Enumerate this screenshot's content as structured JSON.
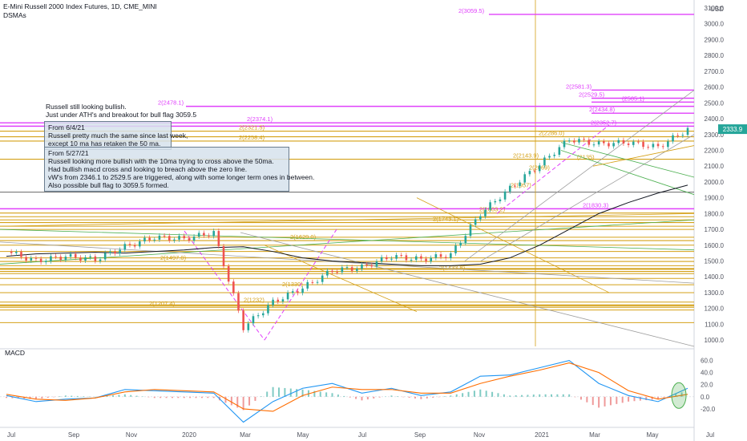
{
  "header": {
    "title": "E-Mini Russell 2000 Index Futures, 1D, CME_MINI",
    "indicator": "DSMAs"
  },
  "price_axis": {
    "currency": "USD",
    "ticks": [
      "3100.0",
      "3000.0",
      "2900.0",
      "2800.0",
      "2700.0",
      "2600.0",
      "2500.0",
      "2400.0",
      "2300.0",
      "2200.0",
      "2100.0",
      "2000.0",
      "1900.0",
      "1800.0",
      "1700.0",
      "1600.0",
      "1500.0",
      "1400.0",
      "1300.0",
      "1200.0",
      "1100.0",
      "1000.0"
    ],
    "last_price": "2333.9",
    "last_price_color": "#26a69a"
  },
  "macd_panel": {
    "label": "MACD",
    "ticks": [
      "60.0",
      "40.0",
      "20.0",
      "0.0",
      "-20.0"
    ]
  },
  "time_axis": [
    "Jul",
    "Sep",
    "Nov",
    "2020",
    "Mar",
    "May",
    "Jul",
    "Sep",
    "Nov",
    "2021",
    "Mar",
    "May",
    "Jul"
  ],
  "annotations": {
    "main_note": [
      "Russell still looking bullish.",
      "Just under ATH's and breakout for bull flag 3059.5"
    ],
    "box1_title": "From 6/4/21",
    "box1_lines": [
      "Russell pretty much the same since last week,",
      "except 10 ma has retaken the 50 ma."
    ],
    "box2_title": "From 5/27/21",
    "box2_lines": [
      "Russell looking more bullish with the 10ma trying to cross above the 50ma.",
      "Had bullish macd cross and looking to breach above the zero line.",
      "vW's from 2346.1 to 2529.5 are triggered, along with some longer term ones in between.",
      "Also possible bull flag to 3059.5 formed."
    ]
  },
  "level_labels": {
    "magenta": [
      "2(3059.5)",
      "2(2581.3)",
      "2(2529.5)",
      "(2505.1)",
      "2(2478.1)",
      "2(2434.8)",
      "2(2374.1)",
      "2(2352.7)",
      "2(1830.3)"
    ],
    "gold": [
      "2(2321.5)",
      "2(2258.4)",
      "2(2286.0)",
      "2(2143.9)",
      "2(2069)",
      "2(1957)",
      "2(1803.2)",
      "2(1743.1)",
      "2(1629.0)",
      "2(1497.0)",
      "2(1433.8)",
      "2(1330)",
      "2(1232)",
      "2(1207.4)",
      "(2135)"
    ]
  },
  "colors": {
    "candle_up": "#26a69a",
    "candle_down": "#ef5350",
    "magenta_level": "#e040fb",
    "gold_level": "#d4a017",
    "macd_line": "#2196f3",
    "signal_line": "#ff6d00",
    "ma_long": "#131722",
    "highlight_circle": "#4caf50"
  },
  "chart_data": {
    "type": "line",
    "title": "E-Mini Russell 2000 Index Futures, 1D, CME_MINI",
    "xlabel": "",
    "ylabel": "",
    "ylim": [
      960,
      3100
    ],
    "x": [
      "2019-07",
      "2019-08",
      "2019-09",
      "2019-10",
      "2019-11",
      "2019-12",
      "2020-01",
      "2020-02",
      "2020-03",
      "2020-04",
      "2020-05",
      "2020-06",
      "2020-07",
      "2020-08",
      "2020-09",
      "2020-10",
      "2020-11",
      "2020-12",
      "2021-01",
      "2021-02",
      "2021-03",
      "2021-04",
      "2021-05",
      "2021-06"
    ],
    "series": [
      {
        "values": [
          1560,
          1500,
          1530,
          1510,
          1590,
          1650,
          1640,
          1680,
          1080,
          1240,
          1330,
          1440,
          1460,
          1530,
          1510,
          1540,
          1800,
          1960,
          2110,
          2270,
          2240,
          2250,
          2220,
          2333.9
        ]
      }
    ],
    "horizontal_levels": [
      3059.5,
      2581.3,
      2529.5,
      2505.1,
      2478.1,
      2434.8,
      2374.1,
      2352.7,
      2321.5,
      2286.0,
      2258.4,
      2143.9,
      1830.3,
      1803.2,
      1743.1,
      1629.0,
      1497.0,
      1433.8,
      1207.4
    ],
    "long_ma": [
      1530,
      1545,
      1550,
      1555,
      1550,
      1560,
      1570,
      1585,
      1590,
      1560,
      1520,
      1500,
      1490,
      1480,
      1470,
      1470,
      1480,
      1520,
      1600,
      1700,
      1800,
      1870,
      1930,
      1980
    ],
    "macd": [
      2,
      -8,
      -4,
      -2,
      12,
      10,
      8,
      6,
      -42,
      -8,
      14,
      22,
      6,
      14,
      2,
      8,
      34,
      36,
      48,
      60,
      22,
      2,
      -8,
      14
    ],
    "signal": [
      4,
      -4,
      -6,
      -2,
      8,
      12,
      10,
      8,
      -20,
      -24,
      2,
      16,
      12,
      12,
      6,
      6,
      22,
      34,
      44,
      56,
      40,
      10,
      -4,
      4
    ],
    "macd_ylim": [
      -40,
      70
    ]
  }
}
